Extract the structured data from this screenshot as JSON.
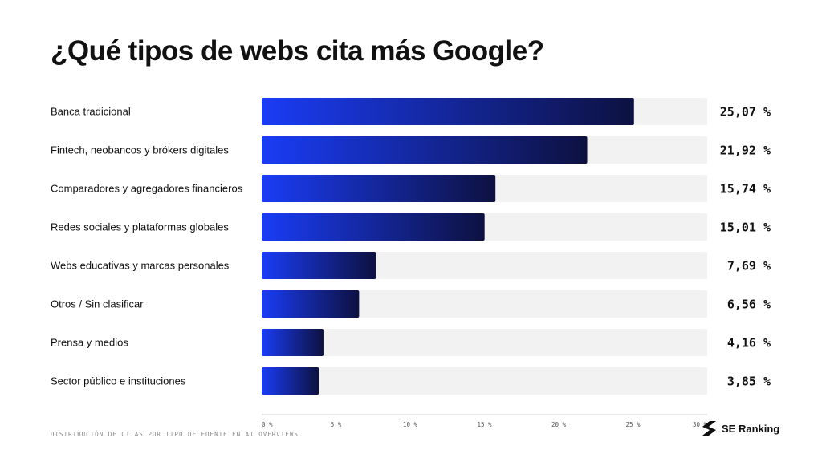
{
  "title": "¿Qué tipos de webs cita más Google?",
  "footnote": "DISTRIBUCIÓN DE CITAS POR TIPO DE FUENTE EN AI OVERVIEWS",
  "brand": {
    "name": "SE Ranking"
  },
  "colors": {
    "bar_start": "#1a3cf5",
    "bar_end": "#0d1140",
    "track": "#f2f2f2",
    "axis": "#cfcfcf"
  },
  "chart_data": {
    "type": "bar",
    "orientation": "horizontal",
    "categories": [
      "Banca tradicional",
      "Fintech, neobancos y brókers digitales",
      "Comparadores y agregadores financieros",
      "Redes sociales y plataformas globales",
      "Webs educativas y marcas personales",
      "Otros / Sin clasificar",
      "Prensa y medios",
      "Sector público e instituciones"
    ],
    "values": [
      25.07,
      21.92,
      15.74,
      15.01,
      7.69,
      6.56,
      4.16,
      3.85
    ],
    "value_labels": [
      "25,07 %",
      "21,92 %",
      "15,74 %",
      "15,01 %",
      "7,69 %",
      "6,56 %",
      "4,16 %",
      "3,85 %"
    ],
    "xlim": [
      0,
      30
    ],
    "x_ticks": [
      0,
      5,
      10,
      15,
      20,
      25,
      30
    ],
    "x_tick_labels": [
      "0 %",
      "5 %",
      "10 %",
      "15 %",
      "20 %",
      "25 %",
      "30 %"
    ],
    "grid": false,
    "legend": "none"
  }
}
